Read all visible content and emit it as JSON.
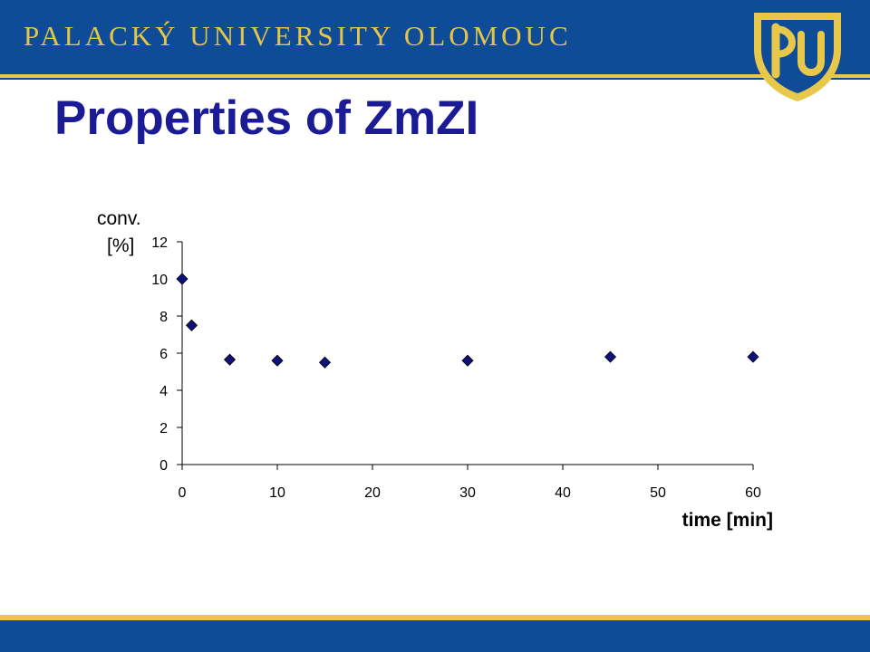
{
  "header": {
    "university_name": "PALACKÝ UNIVERSITY OLOMOUC",
    "logo_icon": "university-shield-logo-icon",
    "band_color": "#0f4c98",
    "accent_color": "#e8c84a"
  },
  "slide": {
    "title": "Properties of ZmZI",
    "title_color": "#1b1b96"
  },
  "chart_data": {
    "type": "scatter",
    "title": "",
    "xlabel": "time [min]",
    "ylabel_line1": "conv.",
    "ylabel_line2": "[%]",
    "xlim": [
      0,
      60
    ],
    "ylim": [
      0,
      12
    ],
    "x_ticks": [
      "0",
      "10",
      "20",
      "30",
      "40",
      "50",
      "60"
    ],
    "y_ticks": [
      "0",
      "2",
      "4",
      "6",
      "8",
      "10",
      "12"
    ],
    "grid": false,
    "legend": "none",
    "marker": "diamond",
    "marker_color": "#10107a",
    "series": [
      {
        "x": [
          0,
          1,
          5,
          10,
          15,
          30,
          45,
          60
        ],
        "y": [
          10.0,
          7.5,
          5.65,
          5.6,
          5.5,
          5.6,
          5.8,
          5.8
        ]
      }
    ]
  }
}
